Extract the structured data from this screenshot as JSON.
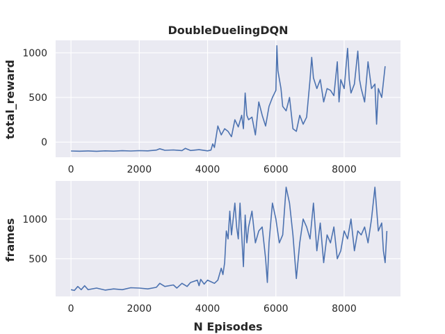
{
  "chart_data": [
    {
      "type": "line",
      "title": "DoubleDuelingDQN",
      "xlabel": "",
      "ylabel": "total_reward",
      "xlim": [
        -450,
        9650
      ],
      "ylim": [
        -170,
        1140
      ],
      "xticks": [
        0,
        2000,
        4000,
        6000,
        8000
      ],
      "xtick_labels": [
        "0",
        "2000",
        "4000",
        "6000",
        "8000"
      ],
      "yticks": [
        0,
        500,
        1000
      ],
      "ytick_labels": [
        "0",
        "500",
        "1000"
      ],
      "grid": true,
      "series": [
        {
          "color": "#4c72b0",
          "points": [
            [
              0,
              -100
            ],
            [
              250,
              -102
            ],
            [
              500,
              -99
            ],
            [
              750,
              -103
            ],
            [
              1000,
              -98
            ],
            [
              1250,
              -101
            ],
            [
              1500,
              -97
            ],
            [
              1750,
              -100
            ],
            [
              2000,
              -96
            ],
            [
              2250,
              -98
            ],
            [
              2500,
              -90
            ],
            [
              2600,
              -75
            ],
            [
              2750,
              -92
            ],
            [
              3000,
              -88
            ],
            [
              3250,
              -95
            ],
            [
              3350,
              -70
            ],
            [
              3500,
              -94
            ],
            [
              3750,
              -85
            ],
            [
              4000,
              -98
            ],
            [
              4100,
              -90
            ],
            [
              4150,
              -20
            ],
            [
              4200,
              -60
            ],
            [
              4300,
              180
            ],
            [
              4400,
              80
            ],
            [
              4500,
              150
            ],
            [
              4600,
              120
            ],
            [
              4700,
              60
            ],
            [
              4800,
              250
            ],
            [
              4900,
              170
            ],
            [
              5000,
              300
            ],
            [
              5050,
              150
            ],
            [
              5100,
              550
            ],
            [
              5150,
              300
            ],
            [
              5200,
              250
            ],
            [
              5300,
              280
            ],
            [
              5400,
              80
            ],
            [
              5500,
              450
            ],
            [
              5600,
              300
            ],
            [
              5700,
              180
            ],
            [
              5800,
              400
            ],
            [
              5900,
              500
            ],
            [
              6000,
              580
            ],
            [
              6030,
              1080
            ],
            [
              6060,
              800
            ],
            [
              6150,
              600
            ],
            [
              6200,
              400
            ],
            [
              6300,
              350
            ],
            [
              6400,
              500
            ],
            [
              6500,
              150
            ],
            [
              6600,
              120
            ],
            [
              6700,
              300
            ],
            [
              6800,
              200
            ],
            [
              6900,
              280
            ],
            [
              7000,
              700
            ],
            [
              7050,
              950
            ],
            [
              7100,
              720
            ],
            [
              7200,
              600
            ],
            [
              7300,
              700
            ],
            [
              7400,
              450
            ],
            [
              7500,
              600
            ],
            [
              7600,
              580
            ],
            [
              7700,
              520
            ],
            [
              7800,
              900
            ],
            [
              7850,
              450
            ],
            [
              7900,
              700
            ],
            [
              8000,
              600
            ],
            [
              8100,
              1050
            ],
            [
              8150,
              700
            ],
            [
              8200,
              550
            ],
            [
              8300,
              650
            ],
            [
              8400,
              1020
            ],
            [
              8450,
              700
            ],
            [
              8500,
              600
            ],
            [
              8600,
              450
            ],
            [
              8700,
              900
            ],
            [
              8800,
              600
            ],
            [
              8900,
              650
            ],
            [
              8950,
              200
            ],
            [
              9000,
              600
            ],
            [
              9100,
              500
            ],
            [
              9200,
              850
            ]
          ]
        }
      ]
    },
    {
      "type": "line",
      "title": "",
      "xlabel": "N Episodes",
      "ylabel": "frames",
      "xlim": [
        -450,
        9650
      ],
      "ylim": [
        25,
        1480
      ],
      "xticks": [
        0,
        2000,
        4000,
        6000,
        8000
      ],
      "xtick_labels": [
        "0",
        "2000",
        "4000",
        "6000",
        "8000"
      ],
      "yticks": [
        500,
        1000
      ],
      "ytick_labels": [
        "500",
        "1000"
      ],
      "grid": true,
      "series": [
        {
          "color": "#4c72b0",
          "points": [
            [
              0,
              110
            ],
            [
              100,
              100
            ],
            [
              200,
              150
            ],
            [
              300,
              110
            ],
            [
              400,
              160
            ],
            [
              500,
              110
            ],
            [
              750,
              130
            ],
            [
              1000,
              105
            ],
            [
              1250,
              120
            ],
            [
              1500,
              110
            ],
            [
              1750,
              135
            ],
            [
              2000,
              130
            ],
            [
              2250,
              120
            ],
            [
              2500,
              140
            ],
            [
              2600,
              190
            ],
            [
              2750,
              150
            ],
            [
              3000,
              170
            ],
            [
              3100,
              130
            ],
            [
              3250,
              190
            ],
            [
              3400,
              150
            ],
            [
              3500,
              200
            ],
            [
              3700,
              230
            ],
            [
              3750,
              160
            ],
            [
              3800,
              240
            ],
            [
              3900,
              180
            ],
            [
              4000,
              230
            ],
            [
              4100,
              210
            ],
            [
              4200,
              190
            ],
            [
              4300,
              230
            ],
            [
              4400,
              380
            ],
            [
              4450,
              300
            ],
            [
              4500,
              450
            ],
            [
              4550,
              850
            ],
            [
              4600,
              750
            ],
            [
              4650,
              1100
            ],
            [
              4700,
              800
            ],
            [
              4800,
              1200
            ],
            [
              4850,
              900
            ],
            [
              4900,
              750
            ],
            [
              4950,
              1200
            ],
            [
              5000,
              800
            ],
            [
              5050,
              400
            ],
            [
              5100,
              1050
            ],
            [
              5150,
              700
            ],
            [
              5200,
              900
            ],
            [
              5300,
              1100
            ],
            [
              5400,
              700
            ],
            [
              5500,
              850
            ],
            [
              5600,
              900
            ],
            [
              5700,
              500
            ],
            [
              5750,
              200
            ],
            [
              5800,
              700
            ],
            [
              5900,
              1200
            ],
            [
              6000,
              1000
            ],
            [
              6100,
              700
            ],
            [
              6200,
              800
            ],
            [
              6300,
              1400
            ],
            [
              6400,
              1200
            ],
            [
              6500,
              800
            ],
            [
              6600,
              250
            ],
            [
              6700,
              700
            ],
            [
              6800,
              1000
            ],
            [
              6900,
              900
            ],
            [
              7000,
              750
            ],
            [
              7100,
              1200
            ],
            [
              7200,
              600
            ],
            [
              7300,
              950
            ],
            [
              7400,
              450
            ],
            [
              7500,
              800
            ],
            [
              7600,
              700
            ],
            [
              7700,
              900
            ],
            [
              7800,
              500
            ],
            [
              7900,
              600
            ],
            [
              8000,
              850
            ],
            [
              8100,
              750
            ],
            [
              8200,
              1000
            ],
            [
              8300,
              600
            ],
            [
              8400,
              850
            ],
            [
              8500,
              800
            ],
            [
              8600,
              900
            ],
            [
              8700,
              700
            ],
            [
              8800,
              1000
            ],
            [
              8900,
              1400
            ],
            [
              9000,
              850
            ],
            [
              9100,
              950
            ],
            [
              9150,
              600
            ],
            [
              9200,
              450
            ],
            [
              9250,
              850
            ]
          ]
        }
      ]
    }
  ]
}
